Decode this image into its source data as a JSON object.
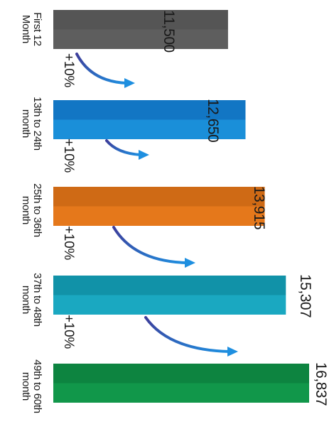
{
  "chart_data": {
    "type": "bar",
    "orientation": "horizontal",
    "categories": [
      "First 12 Month",
      "13th to 24th month",
      "25th to 36th month",
      "37th to 48th month",
      "49th to 60th month"
    ],
    "values": [
      11500,
      12650,
      13915,
      15307,
      16837
    ],
    "value_labels": [
      "11,500",
      "12,650",
      "13,915",
      "15,307",
      "16,837"
    ],
    "increase_labels": [
      "+10%",
      "+10%",
      "+10%",
      "+10%"
    ],
    "colors": [
      "#5e5e5e",
      "#1a8fd9",
      "#e5781b",
      "#1aa8c1",
      "#11974a"
    ],
    "dark_colors": [
      "#555555",
      "#1276c4",
      "#cf6a15",
      "#1192a8",
      "#0d8440"
    ],
    "arrow_color": "#3d3d9a",
    "arrow_end_color": "#1e8fe0",
    "title": "",
    "xlabel": "",
    "ylabel": ""
  }
}
